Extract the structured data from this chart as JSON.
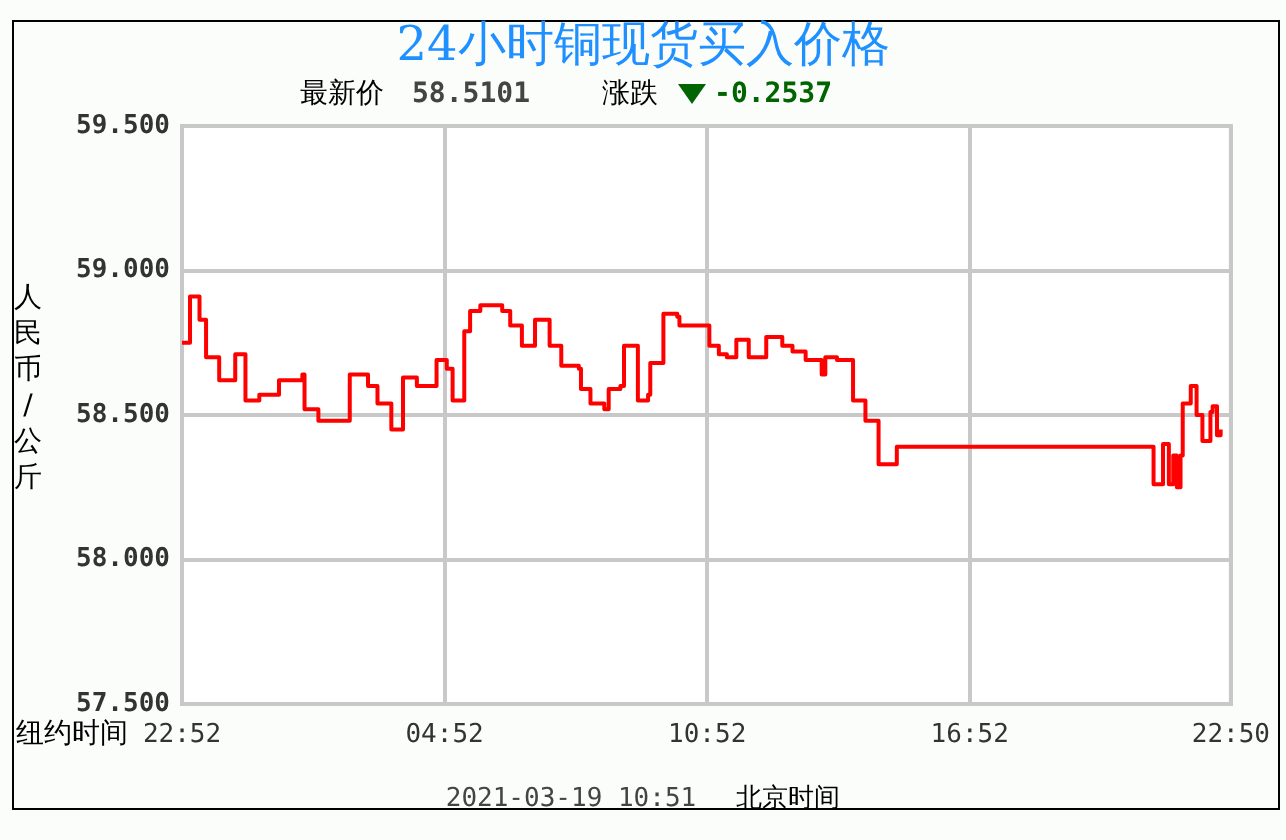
{
  "chart_data": {
    "type": "step",
    "title": "24小时铜现货买入价格",
    "xlabel": "纽约时间",
    "ylabel": "人民币/公斤",
    "annotations": [
      "最新价",
      "58.5101",
      "涨跌",
      "-0.2537",
      "2021-03-19 10:51",
      "北京时间"
    ],
    "xlim": [
      "2021-03-17T22:52",
      "2021-03-18T22:50"
    ],
    "xticks": [
      {
        "value": "2021-03-17T22:52",
        "label": "22:52"
      },
      {
        "value": "2021-03-18T04:52",
        "label": "04:52"
      },
      {
        "value": "2021-03-18T10:52",
        "label": "10:52"
      },
      {
        "value": "2021-03-18T16:52",
        "label": "16:52"
      },
      {
        "value": "2021-03-18T22:50",
        "label": "22:50"
      }
    ],
    "ylim": [
      57.5,
      59.5
    ],
    "yticks": [
      {
        "value": 57.5,
        "label": "57.500"
      },
      {
        "value": 58,
        "label": "58.000"
      },
      {
        "value": 58.5,
        "label": "58.500"
      },
      {
        "value": 59,
        "label": "59.000"
      },
      {
        "value": 59.5,
        "label": "59.500"
      }
    ],
    "grid": true,
    "legend": false,
    "marker": "none",
    "line_style": "solid",
    "series": [
      {
        "color": "#ff0000",
        "x": [
          "2021-03-17T22:52",
          "2021-03-17T23:03",
          "2021-03-17T23:11",
          "2021-03-17T23:16",
          "2021-03-17T23:25",
          "2021-03-17T23:43",
          "2021-03-18T00:05",
          "2021-03-18T00:19",
          "2021-03-18T00:38",
          "2021-03-18T01:05",
          "2021-03-18T01:37",
          "2021-03-18T01:40",
          "2021-03-18T01:59",
          "2021-03-18T02:34",
          "2021-03-18T02:42",
          "2021-03-18T03:07",
          "2021-03-18T03:20",
          "2021-03-18T03:39",
          "2021-03-18T03:55",
          "2021-03-18T04:14",
          "2021-03-18T04:41",
          "2021-03-18T04:55",
          "2021-03-18T05:03",
          "2021-03-18T05:16",
          "2021-03-18T05:19",
          "2021-03-18T05:27",
          "2021-03-18T05:41",
          "2021-03-18T06:11",
          "2021-03-18T06:22",
          "2021-03-18T06:38",
          "2021-03-18T06:51",
          "2021-03-18T06:56",
          "2021-03-18T07:10",
          "2021-03-18T07:16",
          "2021-03-18T07:32",
          "2021-03-18T07:56",
          "2021-03-18T07:59",
          "2021-03-18T08:12",
          "2021-03-18T08:31",
          "2021-03-18T08:37",
          "2021-03-18T08:53",
          "2021-03-18T08:58",
          "2021-03-18T09:12",
          "2021-03-18T09:17",
          "2021-03-18T09:31",
          "2021-03-18T09:34",
          "2021-03-18T09:47",
          "2021-03-18T09:52",
          "2021-03-18T10:11",
          "2021-03-18T10:14",
          "2021-03-18T10:52",
          "2021-03-18T10:55",
          "2021-03-18T11:08",
          "2021-03-18T11:19",
          "2021-03-18T11:32",
          "2021-03-18T11:46",
          "2021-03-18T11:49",
          "2021-03-18T12:08",
          "2021-03-18T12:13",
          "2021-03-18T12:29",
          "2021-03-18T12:35",
          "2021-03-18T12:49",
          "2021-03-18T13:07",
          "2021-03-18T13:29",
          "2021-03-18T13:34",
          "2021-03-18T13:50",
          "2021-03-18T14:12",
          "2021-03-18T14:29",
          "2021-03-18T14:47",
          "2021-03-18T15:04",
          "2021-03-18T15:12",
          "2021-03-18T21:04",
          "2021-03-18T21:14",
          "2021-03-18T21:17",
          "2021-03-18T21:25",
          "2021-03-18T21:31",
          "2021-03-18T21:36",
          "2021-03-18T21:41",
          "2021-03-18T21:44",
          "2021-03-18T21:55",
          "2021-03-18T22:03",
          "2021-03-18T22:11",
          "2021-03-18T22:22",
          "2021-03-18T22:25",
          "2021-03-18T22:31",
          "2021-03-18T22:36"
        ],
        "values": [
          58.75,
          58.91,
          58.91,
          58.83,
          58.7,
          58.62,
          58.71,
          58.55,
          58.57,
          58.62,
          58.64,
          58.52,
          58.48,
          58.48,
          58.64,
          58.6,
          58.54,
          58.45,
          58.63,
          58.6,
          58.69,
          58.66,
          58.55,
          58.55,
          58.79,
          58.86,
          58.88,
          58.86,
          58.81,
          58.74,
          58.74,
          58.83,
          58.83,
          58.74,
          58.67,
          58.66,
          58.59,
          58.54,
          58.52,
          58.59,
          58.6,
          58.74,
          58.74,
          58.55,
          58.57,
          58.68,
          58.68,
          58.85,
          58.84,
          58.81,
          58.81,
          58.74,
          58.71,
          58.7,
          58.76,
          58.76,
          58.7,
          58.7,
          58.77,
          58.77,
          58.74,
          58.72,
          58.69,
          58.64,
          58.7,
          58.69,
          58.55,
          58.48,
          58.33,
          58.33,
          58.39,
          58.26,
          58.26,
          58.4,
          58.26,
          58.36,
          58.25,
          58.36,
          58.54,
          58.6,
          58.5,
          58.41,
          58.51,
          58.53,
          58.43,
          58.45
        ]
      }
    ]
  }
}
